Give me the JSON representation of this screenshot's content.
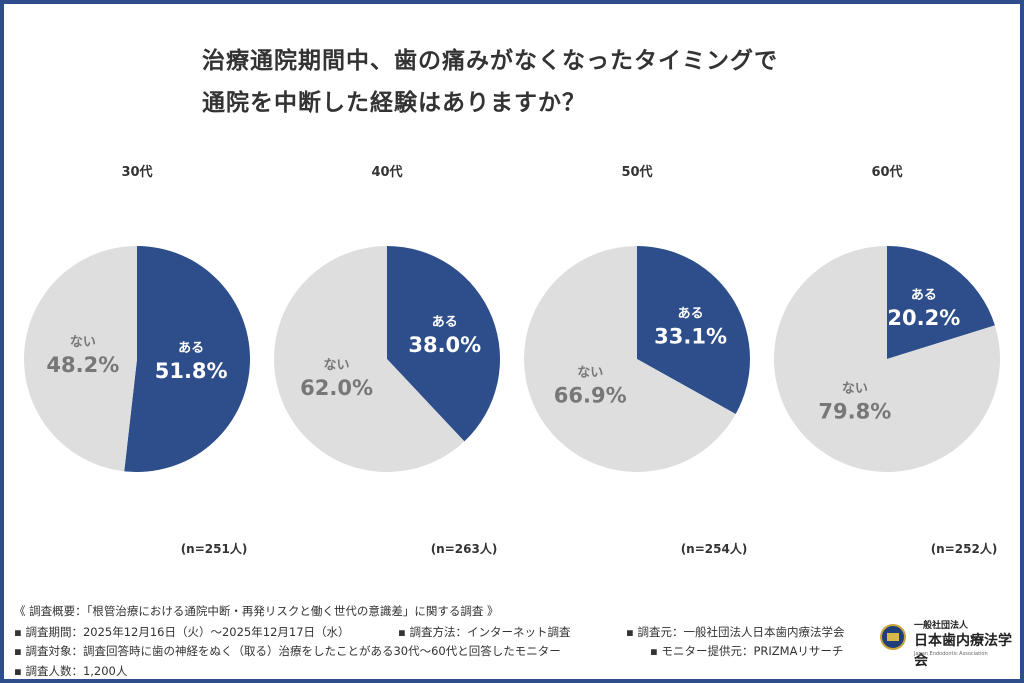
{
  "title_lines": [
    "治療通院期間中、歯の痛みがなくなったタイミングで",
    "通院を中断した経験はありますか？"
  ],
  "colors": {
    "yes": "#2d4e8a",
    "no": "#dedede",
    "yes_text": "#ffffff",
    "no_text": "#777777",
    "border": "#2d4e8a"
  },
  "chart_data": [
    {
      "type": "pie",
      "title": "30代",
      "n_label": "(n=251人)",
      "slices": [
        {
          "label": "ある",
          "value": 51.8,
          "text": "51.8%"
        },
        {
          "label": "ない",
          "value": 48.2,
          "text": "48.2%"
        }
      ]
    },
    {
      "type": "pie",
      "title": "40代",
      "n_label": "(n=263人)",
      "slices": [
        {
          "label": "ある",
          "value": 38.0,
          "text": "38.0%"
        },
        {
          "label": "ない",
          "value": 62.0,
          "text": "62.0%"
        }
      ]
    },
    {
      "type": "pie",
      "title": "50代",
      "n_label": "(n=254人)",
      "slices": [
        {
          "label": "ある",
          "value": 33.1,
          "text": "33.1%"
        },
        {
          "label": "ない",
          "value": 66.9,
          "text": "66.9%"
        }
      ]
    },
    {
      "type": "pie",
      "title": "60代",
      "n_label": "(n=252人)",
      "slices": [
        {
          "label": "ある",
          "value": 20.2,
          "text": "20.2%"
        },
        {
          "label": "ない",
          "value": 79.8,
          "text": "79.8%"
        }
      ]
    }
  ],
  "footer": {
    "heading": "《 調査概要：「根管治療における通院中断・再発リスクと働く世代の意識差」に関する調査 》",
    "period": "▪ 調査期間：2025年12月16日（火）～2025年12月17日（水）",
    "method": "▪ 調査方法：インターネット調査",
    "organizer": "▪ 調査元：一般社団法人日本歯内療法学会",
    "target": "▪ 調査対象：調査回答時に歯の神経をぬく（取る）治療をしたことがある30代～60代と回答したモニター",
    "provider": "▪ モニター提供元：PRIZMAリサーチ",
    "count": "▪ 調査人数：1,200人"
  },
  "logo": {
    "line1": "一般社団法人",
    "line2": "日本歯内療法学会",
    "line3": "Japan Endodontic Association"
  }
}
